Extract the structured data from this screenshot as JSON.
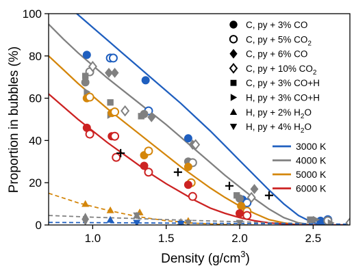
{
  "chart_data": {
    "type": "scatter",
    "title": "",
    "xlabel": "Density (g/cm",
    "xlabel_sup": "3",
    "xlabel_end": ")",
    "ylabel": "Proportion in bubbles (%)",
    "xlim": [
      0.7,
      2.75
    ],
    "ylim": [
      0,
      100
    ],
    "xticks": [
      "1.0",
      "1.5",
      "2.0",
      "2.5"
    ],
    "yticks": [
      "0",
      "20",
      "40",
      "60",
      "80",
      "100"
    ],
    "grid": false,
    "marker_legend_placement": "upper-right",
    "line_legend_placement": "right",
    "temperature_colors": {
      "3000 K": "#1f5fbf",
      "4000 K": "#808080",
      "5000 K": "#d4860b",
      "6000 K": "#cc2222"
    },
    "fits": [
      {
        "name": "3000 K",
        "color": "#1f5fbf",
        "dash": false,
        "x": [
          0.7,
          0.8,
          0.9,
          1.0,
          1.1,
          1.2,
          1.3,
          1.4,
          1.5,
          1.6,
          1.7,
          1.8,
          1.9,
          2.0,
          2.1,
          2.2,
          2.3,
          2.4,
          2.5,
          2.6,
          2.75
        ],
        "y": [
          112,
          106,
          99.5,
          93.5,
          87.5,
          81.5,
          75.5,
          69.5,
          63.5,
          57.5,
          51,
          44.5,
          37.5,
          30.5,
          23.5,
          16.5,
          10,
          4.5,
          1,
          0,
          0
        ]
      },
      {
        "name": "4000 K",
        "color": "#808080",
        "dash": false,
        "x": [
          0.7,
          0.8,
          0.9,
          1.0,
          1.1,
          1.2,
          1.3,
          1.4,
          1.5,
          1.6,
          1.7,
          1.8,
          1.9,
          2.0,
          2.1,
          2.2,
          2.3,
          2.4,
          2.5,
          2.6,
          2.75
        ],
        "y": [
          95,
          88,
          81.5,
          75.5,
          69.5,
          64,
          58.5,
          53,
          47.5,
          41.5,
          35.5,
          29.5,
          23.5,
          18,
          12.5,
          7.5,
          3.5,
          1,
          0,
          0,
          0
        ]
      },
      {
        "name": "5000 K",
        "color": "#d4860b",
        "dash": false,
        "x": [
          0.7,
          0.8,
          0.9,
          1.0,
          1.1,
          1.2,
          1.3,
          1.4,
          1.5,
          1.6,
          1.7,
          1.8,
          1.9,
          2.0,
          2.1,
          2.2,
          2.3,
          2.4,
          2.5,
          2.6,
          2.75
        ],
        "y": [
          80,
          73.5,
          67,
          61,
          55,
          49.5,
          44,
          38.5,
          33,
          27.5,
          22.5,
          17.5,
          13,
          9,
          5.5,
          2.5,
          1,
          0,
          0,
          0,
          0
        ]
      },
      {
        "name": "6000 K",
        "color": "#cc2222",
        "dash": false,
        "x": [
          0.7,
          0.8,
          0.9,
          1.0,
          1.1,
          1.2,
          1.3,
          1.4,
          1.5,
          1.6,
          1.7,
          1.8,
          1.9,
          2.0,
          2.1,
          2.2,
          2.3,
          2.4,
          2.5,
          2.6,
          2.75
        ],
        "y": [
          62,
          56,
          50,
          44.5,
          39,
          34,
          29,
          24,
          19.5,
          15.5,
          11.5,
          8,
          5.5,
          3.5,
          2,
          1,
          0.5,
          0,
          0,
          0,
          0
        ]
      },
      {
        "name": "5000 K (H)",
        "color": "#d4860b",
        "dash": true,
        "x": [
          0.7,
          0.9,
          1.1,
          1.3,
          1.5,
          1.7,
          1.9,
          2.1
        ],
        "y": [
          15,
          10.5,
          7,
          4,
          2,
          0.8,
          0.2,
          0
        ]
      },
      {
        "name": "4000 K (H)",
        "color": "#808080",
        "dash": true,
        "x": [
          0.7,
          1.0,
          1.3,
          1.6,
          1.9,
          2.2,
          2.5,
          2.75
        ],
        "y": [
          4.5,
          3.7,
          3,
          2.3,
          1.7,
          1.1,
          0.6,
          0.3
        ]
      },
      {
        "name": "3000 K (H)",
        "color": "#1f5fbf",
        "dash": true,
        "x": [
          0.7,
          1.0,
          1.5,
          2.0,
          2.5,
          2.75
        ],
        "y": [
          1.2,
          1.1,
          0.9,
          0.7,
          0.5,
          0.4
        ]
      }
    ],
    "points": [
      {
        "m": "circle",
        "c": "#1f5fbf",
        "x": 0.96,
        "y": 80.5
      },
      {
        "m": "circle",
        "c": "#1f5fbf",
        "x": 1.36,
        "y": 68.5
      },
      {
        "m": "circle",
        "c": "#1f5fbf",
        "x": 1.65,
        "y": 41
      },
      {
        "m": "circle",
        "c": "#1f5fbf",
        "x": 2.02,
        "y": 12
      },
      {
        "m": "circle",
        "c": "#1f5fbf",
        "x": 2.55,
        "y": 2
      },
      {
        "m": "circle-open",
        "c": "#1f5fbf",
        "x": 1.12,
        "y": 79
      },
      {
        "m": "circle-open",
        "c": "#1f5fbf",
        "x": 1.14,
        "y": 79
      },
      {
        "m": "circle-open",
        "c": "#1f5fbf",
        "x": 1.38,
        "y": 54
      },
      {
        "m": "circle-open",
        "c": "#1f5fbf",
        "x": 2.05,
        "y": 10.5
      },
      {
        "m": "circle-open",
        "c": "#1f5fbf",
        "x": 2.6,
        "y": 2.5
      },
      {
        "m": "circle",
        "c": "#808080",
        "x": 0.95,
        "y": 67.5
      },
      {
        "m": "circle",
        "c": "#808080",
        "x": 1.35,
        "y": 52.5
      },
      {
        "m": "circle",
        "c": "#808080",
        "x": 1.65,
        "y": 30
      },
      {
        "m": "circle",
        "c": "#808080",
        "x": 2.0,
        "y": 12.5
      },
      {
        "m": "circle-open",
        "c": "#808080",
        "x": 0.98,
        "y": 72.5
      },
      {
        "m": "circle-open",
        "c": "#808080",
        "x": 1.68,
        "y": 29.5
      },
      {
        "m": "circle-open",
        "c": "#808080",
        "x": 2.6,
        "y": 2
      },
      {
        "m": "diamond",
        "c": "#808080",
        "x": 1.11,
        "y": 72
      },
      {
        "m": "diamond",
        "c": "#808080",
        "x": 1.15,
        "y": 72
      },
      {
        "m": "diamond",
        "c": "#808080",
        "x": 1.4,
        "y": 51
      },
      {
        "m": "diamond",
        "c": "#808080",
        "x": 1.68,
        "y": 38
      },
      {
        "m": "diamond",
        "c": "#808080",
        "x": 2.1,
        "y": 17
      },
      {
        "m": "diamond-open",
        "c": "#808080",
        "x": 1.0,
        "y": 75
      },
      {
        "m": "diamond-open",
        "c": "#808080",
        "x": 1.22,
        "y": 54
      },
      {
        "m": "diamond-open",
        "c": "#808080",
        "x": 1.7,
        "y": 38
      },
      {
        "m": "diamond-open",
        "c": "#808080",
        "x": 2.08,
        "y": 13
      },
      {
        "m": "diamond-open",
        "c": "#808080",
        "x": 2.75,
        "y": 1
      },
      {
        "m": "square",
        "c": "#808080",
        "x": 0.95,
        "y": 70.5
      },
      {
        "m": "square",
        "c": "#808080",
        "x": 1.12,
        "y": 58
      },
      {
        "m": "square",
        "c": "#808080",
        "x": 1.33,
        "y": 51.5
      },
      {
        "m": "square",
        "c": "#808080",
        "x": 1.98,
        "y": 14
      },
      {
        "m": "square",
        "c": "#808080",
        "x": 2.48,
        "y": 2.5
      },
      {
        "m": "tri-right",
        "c": "#808080",
        "x": 0.96,
        "y": 63
      },
      {
        "m": "tri-right",
        "c": "#808080",
        "x": 1.12,
        "y": 52
      },
      {
        "m": "tri-right",
        "c": "#808080",
        "x": 2.52,
        "y": 2.5
      },
      {
        "m": "tri-right",
        "c": "#808080",
        "x": 2.62,
        "y": 1
      },
      {
        "m": "circle",
        "c": "#d4860b",
        "x": 0.96,
        "y": 60
      },
      {
        "m": "circle",
        "c": "#d4860b",
        "x": 1.13,
        "y": 53
      },
      {
        "m": "circle",
        "c": "#d4860b",
        "x": 1.35,
        "y": 33
      },
      {
        "m": "circle",
        "c": "#d4860b",
        "x": 1.65,
        "y": 27.5
      },
      {
        "m": "circle",
        "c": "#d4860b",
        "x": 2.01,
        "y": 9
      },
      {
        "m": "circle-open",
        "c": "#d4860b",
        "x": 0.98,
        "y": 60.5
      },
      {
        "m": "circle-open",
        "c": "#d4860b",
        "x": 1.15,
        "y": 53.5
      },
      {
        "m": "circle-open",
        "c": "#d4860b",
        "x": 1.38,
        "y": 35
      },
      {
        "m": "circle-open",
        "c": "#d4860b",
        "x": 1.67,
        "y": 20
      },
      {
        "m": "circle-open",
        "c": "#d4860b",
        "x": 2.05,
        "y": 6.5
      },
      {
        "m": "circle",
        "c": "#cc2222",
        "x": 0.96,
        "y": 46
      },
      {
        "m": "circle",
        "c": "#cc2222",
        "x": 1.13,
        "y": 42
      },
      {
        "m": "circle",
        "c": "#cc2222",
        "x": 1.35,
        "y": 28
      },
      {
        "m": "circle",
        "c": "#cc2222",
        "x": 1.65,
        "y": 19
      },
      {
        "m": "circle",
        "c": "#cc2222",
        "x": 2.0,
        "y": 5.5
      },
      {
        "m": "circle-open",
        "c": "#cc2222",
        "x": 0.98,
        "y": 43
      },
      {
        "m": "circle-open",
        "c": "#cc2222",
        "x": 1.15,
        "y": 42
      },
      {
        "m": "circle-open",
        "c": "#cc2222",
        "x": 1.16,
        "y": 32
      },
      {
        "m": "circle-open",
        "c": "#cc2222",
        "x": 1.38,
        "y": 25
      },
      {
        "m": "circle-open",
        "c": "#cc2222",
        "x": 1.68,
        "y": 13.5
      },
      {
        "m": "circle-open",
        "c": "#cc2222",
        "x": 2.05,
        "y": 4.5
      },
      {
        "m": "cross",
        "c": "#000000",
        "x": 1.19,
        "y": 34
      },
      {
        "m": "cross",
        "c": "#000000",
        "x": 1.58,
        "y": 25
      },
      {
        "m": "cross",
        "c": "#000000",
        "x": 1.93,
        "y": 18.5
      },
      {
        "m": "cross",
        "c": "#000000",
        "x": 2.2,
        "y": 14
      },
      {
        "m": "tri-up",
        "c": "#d4860b",
        "x": 0.95,
        "y": 10
      },
      {
        "m": "tri-up",
        "c": "#d4860b",
        "x": 1.12,
        "y": 7
      },
      {
        "m": "tri-up",
        "c": "#d4860b",
        "x": 1.32,
        "y": 6
      },
      {
        "m": "tri-up",
        "c": "#d4860b",
        "x": 1.65,
        "y": 2
      },
      {
        "m": "tri-up",
        "c": "#1f5fbf",
        "x": 1.12,
        "y": 2.5
      },
      {
        "m": "tri-up",
        "c": "#808080",
        "x": 0.95,
        "y": 4
      },
      {
        "m": "tri-up",
        "c": "#808080",
        "x": 1.3,
        "y": 4.5
      },
      {
        "m": "tri-up",
        "c": "#808080",
        "x": 1.6,
        "y": 1.5
      },
      {
        "m": "tri-down",
        "c": "#808080",
        "x": 0.95,
        "y": 1.5
      },
      {
        "m": "tri-down",
        "c": "#808080",
        "x": 1.3,
        "y": 4.5
      },
      {
        "m": "tri-down",
        "c": "#808080",
        "x": 1.65,
        "y": 1
      },
      {
        "m": "tri-down",
        "c": "#808080",
        "x": 2.0,
        "y": 1
      },
      {
        "m": "tri-down",
        "c": "#1f5fbf",
        "x": 1.3,
        "y": 1
      },
      {
        "m": "tri-down",
        "c": "#1f5fbf",
        "x": 1.6,
        "y": 0.5
      }
    ],
    "marker_legend": [
      {
        "marker": "circle",
        "label": "C, py + 3% CO",
        "sub": ""
      },
      {
        "marker": "circle-open",
        "label": "C, py + 5% CO",
        "sub": "2"
      },
      {
        "marker": "diamond",
        "label": "C, py + 6% CO",
        "sub": ""
      },
      {
        "marker": "diamond-open",
        "label": "C, py + 10% CO",
        "sub": "2"
      },
      {
        "marker": "square",
        "label": "C, py + 3% CO+H",
        "sub": ""
      },
      {
        "marker": "tri-right",
        "label": "H, py + 3% CO+H",
        "sub": ""
      },
      {
        "marker": "tri-up",
        "label": "H, py + 2% H",
        "sub": "2",
        "after": "O"
      },
      {
        "marker": "tri-down",
        "label": "H, py + 4% H",
        "sub": "2",
        "after": "O"
      }
    ],
    "line_legend": [
      {
        "label": "3000 K",
        "color": "#1f5fbf"
      },
      {
        "label": "4000 K",
        "color": "#808080"
      },
      {
        "label": "5000 K",
        "color": "#d4860b"
      },
      {
        "label": "6000 K",
        "color": "#cc2222"
      }
    ]
  }
}
